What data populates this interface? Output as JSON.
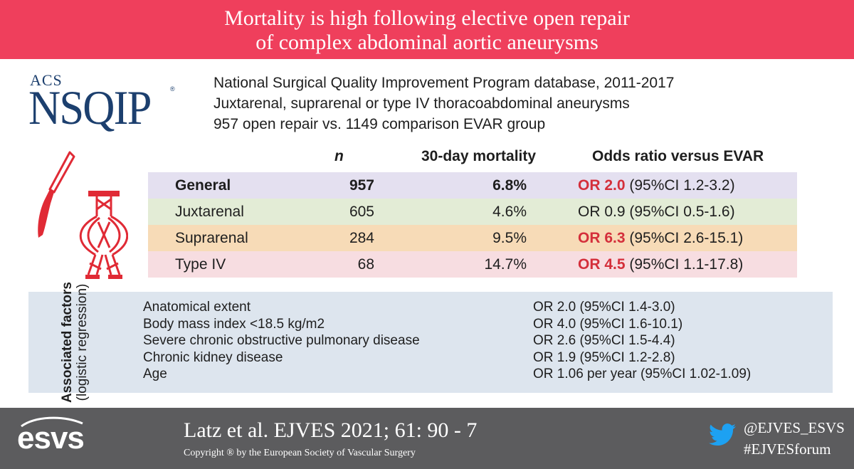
{
  "header": {
    "title_line1": "Mortality is high following elective open repair",
    "title_line2": "of complex abdominal aortic aneurysms"
  },
  "logo": {
    "acs": "ACS",
    "nsqip": "NSQIP",
    "reg": "®"
  },
  "intro": {
    "line1": "National Surgical Quality Improvement Program database, 2011-2017",
    "line2": "Juxtarenal, suprarenal or type IV thoracoabdominal aneurysms",
    "line3": "957 open repair vs. 1149 comparison EVAR group"
  },
  "icons": [
    "scalpel-icon",
    "aorta-stent-icon"
  ],
  "table": {
    "headers": {
      "n": "n",
      "mortality": "30-day mortality",
      "or": "Odds ratio versus EVAR"
    },
    "rows": [
      {
        "label": "General",
        "n": "957",
        "mortality": "6.8%",
        "or_value": "OR 2.0",
        "ci": " (95%CI 1.2-3.2)",
        "bg": "#e4e0f0",
        "bold": true,
        "or_highlight": true
      },
      {
        "label": "Juxtarenal",
        "n": "605",
        "mortality": "4.6%",
        "or_value": "OR 0.9",
        "ci": " (95%CI 0.5-1.6)",
        "bg": "#e3ecd6",
        "bold": false,
        "or_highlight": false
      },
      {
        "label": "Suprarenal",
        "n": "284",
        "mortality": "9.5%",
        "or_value": "OR 6.3",
        "ci": " (95%CI 2.6-15.1)",
        "bg": "#f7dbb7",
        "bold": false,
        "or_highlight": true
      },
      {
        "label": "Type IV",
        "n": "68",
        "mortality": "14.7%",
        "or_value": "OR 4.5",
        "ci": " (95%CI 1.1-17.8)",
        "bg": "#f7dde1",
        "bold": false,
        "or_highlight": true
      }
    ]
  },
  "associated": {
    "title_bold": "Associated factors",
    "title_sub": "(logistic regression)",
    "factors": [
      {
        "name": "Anatomical extent",
        "value": "OR 2.0 (95%CI 1.4-3.0)"
      },
      {
        "name": "Body mass index <18.5 kg/m2",
        "value": "OR 4.0 (95%CI 1.6-10.1)"
      },
      {
        "name": "Severe chronic obstructive pulmonary disease",
        "value": "OR 2.6 (95%CI 1.5-4.4)"
      },
      {
        "name": "Chronic kidney disease",
        "value": "OR 1.9 (95%CI 1.2-2.8)"
      },
      {
        "name": "Age",
        "value": "OR 1.06 per year (95%CI 1.02-1.09)"
      }
    ]
  },
  "footer": {
    "logo_text": "esvs",
    "citation": "Latz et al. EJVES 2021; 61: 90 - 7",
    "copyright": "Copyright ® by the European Society of Vascular Surgery",
    "twitter_handle": "@EJVES_ESVS",
    "hashtag": "#EJVESforum"
  },
  "colors": {
    "header_bg": "#ef3f5c",
    "accent_red": "#d42f3b",
    "footer_bg": "#5c5c5e",
    "assoc_bg": "#dde5ee",
    "logo_blue": "#1c3f6e",
    "twitter_blue": "#1da1f2"
  }
}
